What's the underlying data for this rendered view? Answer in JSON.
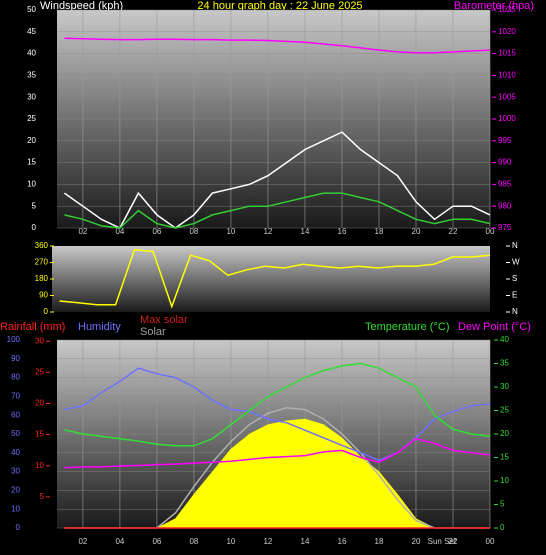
{
  "chart_data": [
    {
      "type": "line",
      "title": "24 hour graph day : 22 June 2025",
      "y_label": "Windspeed (kph)",
      "y2_label": "Barometer (hpa)",
      "x": [
        1,
        2,
        3,
        4,
        5,
        6,
        7,
        8,
        9,
        10,
        11,
        12,
        13,
        14,
        15,
        16,
        17,
        18,
        19,
        20,
        21,
        22,
        23,
        24
      ],
      "xlim": [
        0.6,
        24
      ],
      "xticks": [
        {
          "value": 2,
          "label": "02"
        },
        {
          "value": 4,
          "label": "04"
        },
        {
          "value": 6,
          "label": "06"
        },
        {
          "value": 8,
          "label": "08"
        },
        10,
        12,
        14,
        16,
        18,
        20,
        22,
        {
          "value": 24,
          "label": "00"
        }
      ],
      "ylim": [
        0,
        50
      ],
      "yticks": [
        0,
        5,
        10,
        15,
        20,
        25,
        30,
        35,
        40,
        45,
        50
      ],
      "y2lim": [
        975,
        1025
      ],
      "y2ticks": [
        975,
        980,
        985,
        990,
        995,
        1000,
        1005,
        1010,
        1015,
        1020,
        1025
      ],
      "grid": true,
      "series": [
        {
          "color": "#ffffff",
          "values": [
            8,
            5,
            2,
            0,
            8,
            3,
            0,
            3,
            8,
            9,
            10,
            12,
            15,
            18,
            20,
            22,
            18,
            15,
            12,
            6,
            2,
            5,
            5,
            3
          ]
        },
        {
          "color": "#33cc33",
          "values": [
            3,
            2,
            0.5,
            0,
            4,
            1,
            0,
            1,
            3,
            4,
            5,
            5,
            6,
            7,
            8,
            8,
            7,
            6,
            4,
            2,
            1,
            2,
            2,
            1
          ]
        },
        {
          "color": "#ff00ff",
          "axis": "y2",
          "values": [
            1018.5,
            1018.4,
            1018.3,
            1018.2,
            1018.2,
            1018.3,
            1018.3,
            1018.2,
            1018.2,
            1018.1,
            1018.1,
            1018,
            1017.8,
            1017.6,
            1017.2,
            1016.8,
            1016.3,
            1015.8,
            1015.4,
            1015.2,
            1015.2,
            1015.4,
            1015.6,
            1015.8
          ]
        }
      ]
    },
    {
      "type": "line",
      "x": [
        1,
        2,
        3,
        4,
        5,
        6,
        7,
        8,
        9,
        10,
        11,
        12,
        13,
        14,
        15,
        16,
        17,
        18,
        19,
        20,
        21,
        22,
        23,
        24
      ],
      "xlim": [
        0.6,
        24
      ],
      "ylim": [
        0,
        360
      ],
      "yticks": [
        0,
        90,
        180,
        270,
        360
      ],
      "y2ticks": [
        {
          "value": 360,
          "label": "N"
        },
        {
          "value": 270,
          "label": "W"
        },
        {
          "value": 180,
          "label": "S"
        },
        {
          "value": 90,
          "label": "E"
        },
        {
          "value": 0,
          "label": "N"
        }
      ],
      "series": [
        {
          "color": "#ffff00",
          "values": [
            60,
            50,
            40,
            40,
            340,
            330,
            30,
            310,
            280,
            200,
            230,
            250,
            240,
            260,
            250,
            240,
            250,
            240,
            250,
            250,
            260,
            300,
            300,
            310
          ]
        }
      ]
    },
    {
      "type": "line",
      "x": [
        1,
        2,
        3,
        4,
        5,
        6,
        7,
        8,
        9,
        10,
        11,
        12,
        13,
        14,
        15,
        16,
        17,
        18,
        19,
        20,
        21,
        22,
        23,
        24
      ],
      "xlim": [
        0.6,
        24
      ],
      "xticks": [
        {
          "value": 2,
          "label": "02"
        },
        {
          "value": 4,
          "label": "04"
        },
        {
          "value": 6,
          "label": "06"
        },
        {
          "value": 8,
          "label": "08"
        },
        10,
        12,
        14,
        16,
        18,
        20,
        22,
        {
          "value": 24,
          "label": "00"
        }
      ],
      "ylim": [
        0,
        100
      ],
      "yticks": [
        0,
        10,
        20,
        30,
        40,
        50,
        60,
        70,
        80,
        90,
        100
      ],
      "y2lim": [
        0,
        40
      ],
      "y2ticks": [
        0,
        5,
        10,
        15,
        20,
        25,
        30,
        35,
        40
      ],
      "y3lim": [
        0,
        30.2
      ],
      "y3ticks": [
        5,
        10,
        15,
        20,
        25,
        30
      ],
      "annotations": [
        {
          "text": "Sun Set",
          "x": 21.4
        }
      ],
      "grid": true,
      "series": [
        {
          "name": "Solar",
          "color": "#ffff00",
          "fill": true,
          "values": [
            0,
            0,
            0,
            0,
            0,
            0,
            5,
            18,
            30,
            42,
            50,
            55,
            57,
            58,
            55,
            48,
            38,
            30,
            18,
            5,
            0,
            0,
            0,
            0
          ]
        },
        {
          "name": "Max solar",
          "color": "#b0b0b0",
          "values": [
            0,
            0,
            0,
            0,
            0,
            0,
            8,
            22,
            35,
            46,
            55,
            61,
            64,
            63,
            58,
            50,
            40,
            28,
            15,
            4,
            0,
            0,
            0,
            0
          ]
        },
        {
          "name": "Rainfall (mm)",
          "color": "#ff2020",
          "axis": "y3",
          "values": [
            0,
            0,
            0,
            0,
            0,
            0,
            0,
            0,
            0,
            0,
            0,
            0,
            0,
            0,
            0,
            0,
            0,
            0,
            0,
            0,
            0,
            0,
            0,
            0
          ]
        },
        {
          "name": "Humidity",
          "color": "#7070ff",
          "values": [
            63,
            65,
            72,
            78,
            85,
            82,
            80,
            75,
            68,
            63,
            62,
            58,
            56,
            52,
            48,
            44,
            40,
            36,
            40,
            48,
            58,
            62,
            65,
            66
          ]
        },
        {
          "name": "Temperature (°C)",
          "color": "#33dd33",
          "axis": "y2",
          "values": [
            20.9,
            20,
            19.5,
            19,
            18.5,
            17.8,
            17.5,
            17.5,
            19,
            22,
            25,
            28,
            30,
            32,
            33.5,
            34.5,
            35,
            34,
            32,
            30,
            24,
            21,
            20,
            19.5
          ]
        },
        {
          "name": "Dew Point (°C)",
          "color": "#ff00ff",
          "axis": "y2",
          "values": [
            12.8,
            13,
            13,
            13.2,
            13.3,
            13.5,
            13.6,
            13.8,
            14,
            14.2,
            14.6,
            15,
            15.2,
            15.4,
            16.2,
            16.5,
            15,
            14,
            16,
            19,
            18,
            16.5,
            16,
            15.5
          ]
        }
      ]
    }
  ]
}
